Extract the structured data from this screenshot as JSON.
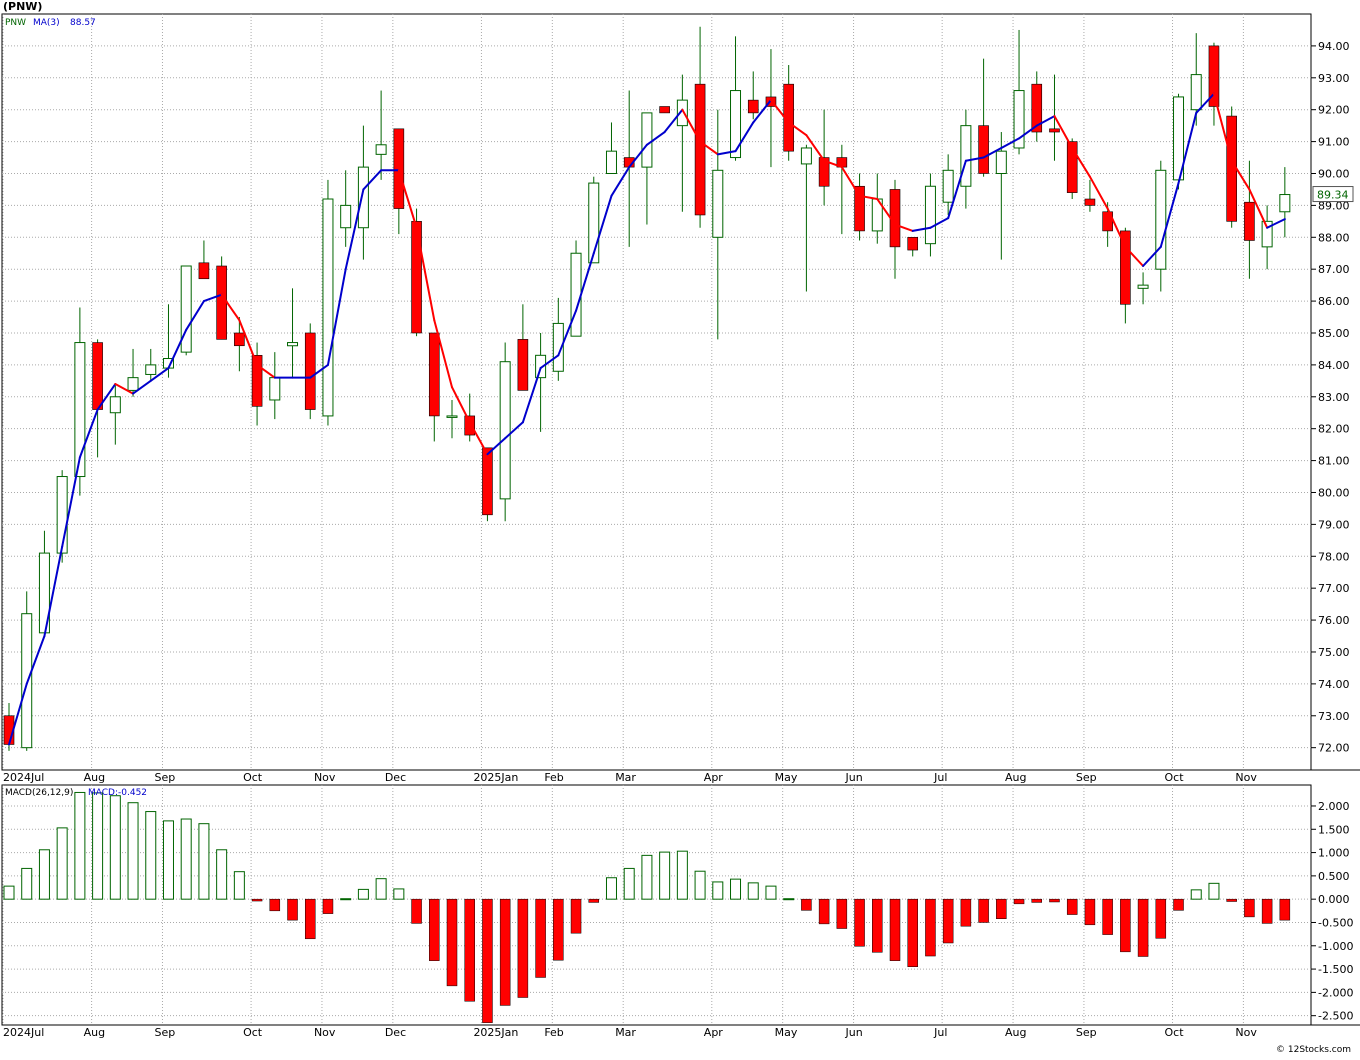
{
  "header": {
    "title": "(PNW)",
    "ticker": "PNW",
    "ma_label": "MA(3)",
    "ma_value": "88.57",
    "last_price": "89.34"
  },
  "macd_header": {
    "label": "MACD(26,12,9)",
    "value_label": "MACD:-0.452"
  },
  "footer": {
    "credit": "© 12Stocks.com"
  },
  "colors": {
    "up": "#006400",
    "down": "#ff0000",
    "ma_line_up": "#0000cc",
    "ma_line_down": "#ff0000",
    "grid": "#aaaaaa",
    "price_box_text": "#006400"
  },
  "chart_data": [
    {
      "type": "candlestick",
      "title": "(PNW)",
      "y_ticks": [
        "72.00",
        "73.00",
        "74.00",
        "75.00",
        "76.00",
        "77.00",
        "78.00",
        "79.00",
        "80.00",
        "81.00",
        "82.00",
        "83.00",
        "84.00",
        "85.00",
        "86.00",
        "87.00",
        "88.00",
        "89.00",
        "90.00",
        "91.00",
        "92.00",
        "93.00",
        "94.00"
      ],
      "ylim": [
        71.3,
        95.0
      ],
      "x_labels": [
        {
          "idx": 0,
          "text": "2024Jul"
        },
        {
          "idx": 5,
          "text": "Aug"
        },
        {
          "idx": 9,
          "text": "Sep"
        },
        {
          "idx": 14,
          "text": "Oct"
        },
        {
          "idx": 18,
          "text": "Nov"
        },
        {
          "idx": 22,
          "text": "Dec"
        },
        {
          "idx": 27,
          "text": "2025Jan"
        },
        {
          "idx": 31,
          "text": "Feb"
        },
        {
          "idx": 35,
          "text": "Mar"
        },
        {
          "idx": 40,
          "text": "Apr"
        },
        {
          "idx": 44,
          "text": "May"
        },
        {
          "idx": 48,
          "text": "Jun"
        },
        {
          "idx": 53,
          "text": "Jul"
        },
        {
          "idx": 57,
          "text": "Aug"
        },
        {
          "idx": 61,
          "text": "Sep"
        },
        {
          "idx": 66,
          "text": "Oct"
        },
        {
          "idx": 70,
          "text": "Nov"
        }
      ],
      "candles": [
        {
          "o": 73.0,
          "h": 73.4,
          "l": 71.9,
          "c": 72.1
        },
        {
          "o": 72.0,
          "h": 76.9,
          "l": 71.9,
          "c": 76.2
        },
        {
          "o": 75.6,
          "h": 78.8,
          "l": 75.5,
          "c": 78.1
        },
        {
          "o": 78.1,
          "h": 80.7,
          "l": 77.8,
          "c": 80.5
        },
        {
          "o": 80.5,
          "h": 85.8,
          "l": 79.9,
          "c": 84.7
        },
        {
          "o": 84.7,
          "h": 84.8,
          "l": 81.1,
          "c": 82.6
        },
        {
          "o": 82.5,
          "h": 83.4,
          "l": 81.5,
          "c": 83.0
        },
        {
          "o": 83.2,
          "h": 84.5,
          "l": 83.0,
          "c": 83.6
        },
        {
          "o": 83.7,
          "h": 84.5,
          "l": 83.5,
          "c": 84.0
        },
        {
          "o": 83.9,
          "h": 85.9,
          "l": 83.6,
          "c": 84.2
        },
        {
          "o": 84.4,
          "h": 87.1,
          "l": 84.3,
          "c": 87.1
        },
        {
          "o": 87.2,
          "h": 87.9,
          "l": 86.8,
          "c": 86.7
        },
        {
          "o": 87.1,
          "h": 87.4,
          "l": 84.8,
          "c": 84.8
        },
        {
          "o": 85.0,
          "h": 85.5,
          "l": 83.8,
          "c": 84.6
        },
        {
          "o": 84.3,
          "h": 84.7,
          "l": 82.1,
          "c": 82.7
        },
        {
          "o": 82.9,
          "h": 84.4,
          "l": 82.3,
          "c": 83.6
        },
        {
          "o": 84.6,
          "h": 86.4,
          "l": 83.6,
          "c": 84.7
        },
        {
          "o": 85.0,
          "h": 85.3,
          "l": 82.3,
          "c": 82.6
        },
        {
          "o": 82.4,
          "h": 89.8,
          "l": 82.1,
          "c": 89.2
        },
        {
          "o": 88.3,
          "h": 90.1,
          "l": 87.7,
          "c": 89.0
        },
        {
          "o": 88.3,
          "h": 91.5,
          "l": 87.3,
          "c": 90.2
        },
        {
          "o": 90.6,
          "h": 92.6,
          "l": 89.8,
          "c": 90.9
        },
        {
          "o": 91.4,
          "h": 91.4,
          "l": 88.1,
          "c": 88.9
        },
        {
          "o": 88.5,
          "h": 88.9,
          "l": 84.9,
          "c": 85.0
        },
        {
          "o": 85.0,
          "h": 85.0,
          "l": 81.6,
          "c": 82.4
        },
        {
          "o": 82.4,
          "h": 82.9,
          "l": 81.7,
          "c": 82.4
        },
        {
          "o": 82.4,
          "h": 83.1,
          "l": 81.6,
          "c": 81.8
        },
        {
          "o": 81.4,
          "h": 81.4,
          "l": 79.1,
          "c": 79.3
        },
        {
          "o": 79.8,
          "h": 84.7,
          "l": 79.1,
          "c": 84.1
        },
        {
          "o": 84.8,
          "h": 85.9,
          "l": 83.2,
          "c": 83.2
        },
        {
          "o": 83.6,
          "h": 85.0,
          "l": 81.9,
          "c": 84.3
        },
        {
          "o": 83.8,
          "h": 86.1,
          "l": 83.5,
          "c": 85.3
        },
        {
          "o": 84.9,
          "h": 87.9,
          "l": 84.9,
          "c": 87.5
        },
        {
          "o": 87.2,
          "h": 89.9,
          "l": 87.2,
          "c": 89.7
        },
        {
          "o": 90.0,
          "h": 91.6,
          "l": 90.0,
          "c": 90.7
        },
        {
          "o": 90.5,
          "h": 92.6,
          "l": 87.7,
          "c": 90.2
        },
        {
          "o": 90.2,
          "h": 91.7,
          "l": 88.4,
          "c": 91.9
        },
        {
          "o": 92.1,
          "h": 92.1,
          "l": 91.9,
          "c": 91.9
        },
        {
          "o": 91.5,
          "h": 93.1,
          "l": 88.8,
          "c": 92.3
        },
        {
          "o": 92.8,
          "h": 94.6,
          "l": 88.3,
          "c": 88.7
        },
        {
          "o": 88.0,
          "h": 92.0,
          "l": 84.8,
          "c": 90.1
        },
        {
          "o": 90.5,
          "h": 94.3,
          "l": 90.4,
          "c": 92.6
        },
        {
          "o": 92.3,
          "h": 93.2,
          "l": 91.7,
          "c": 91.9
        },
        {
          "o": 92.4,
          "h": 93.9,
          "l": 90.2,
          "c": 92.1
        },
        {
          "o": 92.8,
          "h": 93.4,
          "l": 90.4,
          "c": 90.7
        },
        {
          "o": 90.3,
          "h": 90.9,
          "l": 86.3,
          "c": 90.8
        },
        {
          "o": 90.5,
          "h": 92.0,
          "l": 89.0,
          "c": 89.6
        },
        {
          "o": 90.5,
          "h": 90.9,
          "l": 88.1,
          "c": 90.2
        },
        {
          "o": 89.6,
          "h": 90.0,
          "l": 87.9,
          "c": 88.2
        },
        {
          "o": 88.2,
          "h": 90.0,
          "l": 87.8,
          "c": 89.2
        },
        {
          "o": 89.5,
          "h": 89.8,
          "l": 86.7,
          "c": 87.7
        },
        {
          "o": 88.0,
          "h": 88.0,
          "l": 87.4,
          "c": 87.6
        },
        {
          "o": 87.8,
          "h": 90.0,
          "l": 87.4,
          "c": 89.6
        },
        {
          "o": 89.1,
          "h": 90.6,
          "l": 88.7,
          "c": 90.1
        },
        {
          "o": 89.6,
          "h": 92.0,
          "l": 88.9,
          "c": 91.5
        },
        {
          "o": 91.5,
          "h": 93.6,
          "l": 89.9,
          "c": 90.0
        },
        {
          "o": 90.0,
          "h": 91.3,
          "l": 87.3,
          "c": 90.7
        },
        {
          "o": 90.8,
          "h": 94.5,
          "l": 90.6,
          "c": 92.6
        },
        {
          "o": 92.8,
          "h": 93.2,
          "l": 91.0,
          "c": 91.3
        },
        {
          "o": 91.4,
          "h": 93.1,
          "l": 90.4,
          "c": 91.3
        },
        {
          "o": 91.0,
          "h": 91.1,
          "l": 89.2,
          "c": 89.4
        },
        {
          "o": 89.2,
          "h": 89.8,
          "l": 88.8,
          "c": 89.0
        },
        {
          "o": 88.8,
          "h": 89.1,
          "l": 87.7,
          "c": 88.2
        },
        {
          "o": 88.2,
          "h": 88.3,
          "l": 85.3,
          "c": 85.9
        },
        {
          "o": 86.4,
          "h": 86.9,
          "l": 85.9,
          "c": 86.5
        },
        {
          "o": 87.0,
          "h": 90.4,
          "l": 86.3,
          "c": 90.1
        },
        {
          "o": 89.8,
          "h": 92.5,
          "l": 89.5,
          "c": 92.4
        },
        {
          "o": 92.0,
          "h": 94.4,
          "l": 91.5,
          "c": 93.1
        },
        {
          "o": 94.0,
          "h": 94.1,
          "l": 91.5,
          "c": 92.1
        },
        {
          "o": 91.8,
          "h": 92.1,
          "l": 88.3,
          "c": 88.5
        },
        {
          "o": 89.1,
          "h": 90.4,
          "l": 86.7,
          "c": 87.9
        },
        {
          "o": 87.7,
          "h": 89.0,
          "l": 87.0,
          "c": 88.5
        },
        {
          "o": 88.8,
          "h": 90.2,
          "l": 88.0,
          "c": 89.34
        }
      ],
      "ma3": [
        72.1,
        74.0,
        75.5,
        78.3,
        81.1,
        82.6,
        83.4,
        83.1,
        83.5,
        83.9,
        85.1,
        86.0,
        86.2,
        85.4,
        84.0,
        83.6,
        83.6,
        83.6,
        84.0,
        87.0,
        89.5,
        90.1,
        90.1,
        88.3,
        85.4,
        83.3,
        82.2,
        81.2,
        81.7,
        82.2,
        83.9,
        84.3,
        85.7,
        87.5,
        89.3,
        90.2,
        90.9,
        91.3,
        92.0,
        91.0,
        90.6,
        90.7,
        91.6,
        92.3,
        91.6,
        91.2,
        90.4,
        90.2,
        89.3,
        89.2,
        88.4,
        88.2,
        88.3,
        88.6,
        90.4,
        90.5,
        90.8,
        91.1,
        91.5,
        91.8,
        90.8,
        89.9,
        88.9,
        87.7,
        87.1,
        87.7,
        89.7,
        91.9,
        92.5,
        90.4,
        89.5,
        88.3,
        88.57
      ]
    },
    {
      "type": "bar",
      "title": "MACD(26,12,9)",
      "y_ticks": [
        "2.000",
        "1.500",
        "1.000",
        "0.500",
        "0.000",
        "-0.500",
        "-1.000",
        "-1.500",
        "-2.000",
        "-2.500"
      ],
      "ylim": [
        -2.7,
        2.45
      ],
      "values": [
        0.28,
        0.66,
        1.06,
        1.53,
        2.29,
        2.28,
        2.22,
        2.07,
        1.88,
        1.68,
        1.72,
        1.62,
        1.06,
        0.59,
        -0.04,
        -0.25,
        -0.45,
        -0.85,
        -0.31,
        0.01,
        0.21,
        0.44,
        0.22,
        -0.52,
        -1.32,
        -1.86,
        -2.19,
        -2.65,
        -2.28,
        -2.11,
        -1.68,
        -1.31,
        -0.73,
        -0.07,
        0.46,
        0.66,
        0.94,
        1.01,
        1.03,
        0.6,
        0.37,
        0.43,
        0.35,
        0.28,
        0.01,
        -0.24,
        -0.53,
        -0.63,
        -1.01,
        -1.14,
        -1.32,
        -1.45,
        -1.22,
        -0.94,
        -0.58,
        -0.5,
        -0.42,
        -0.1,
        -0.07,
        -0.06,
        -0.33,
        -0.55,
        -0.76,
        -1.13,
        -1.23,
        -0.84,
        -0.24,
        0.2,
        0.34,
        -0.05,
        -0.38,
        -0.52,
        -0.45
      ]
    }
  ]
}
